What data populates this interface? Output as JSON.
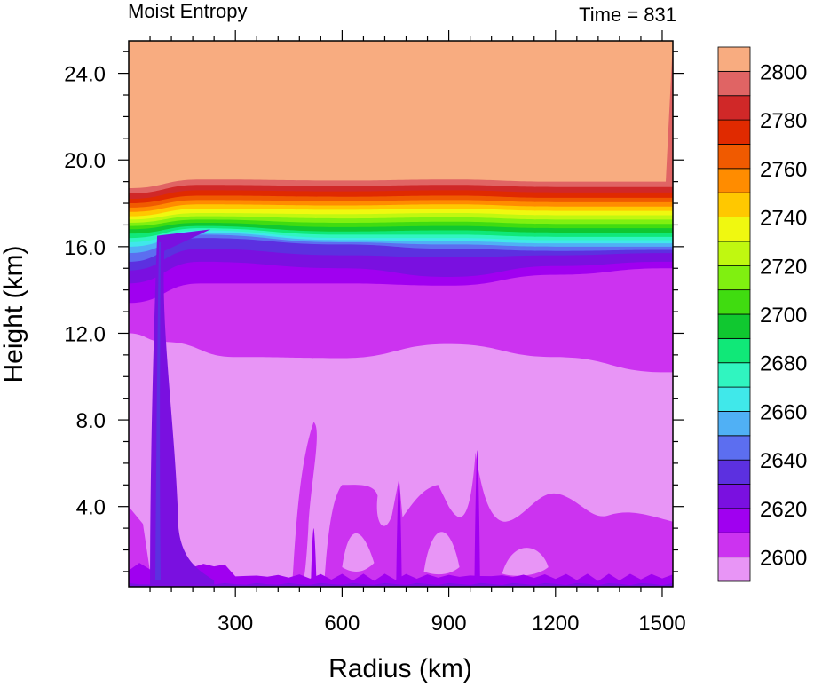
{
  "chart_data": {
    "type": "heatmap",
    "title_left": "Moist Entropy",
    "title_right": "Time = 831",
    "xlabel": "Radius (km)",
    "ylabel": "Height (km)",
    "xlim": [
      0,
      1530
    ],
    "ylim": [
      0.3,
      25.5
    ],
    "xticks": [
      300,
      600,
      900,
      1200,
      1500
    ],
    "xtick_labels": [
      "300",
      "600",
      "900",
      "1200",
      "1500"
    ],
    "yticks": [
      4,
      8,
      12,
      16,
      20,
      24
    ],
    "ytick_labels": [
      "4.0",
      "8.0",
      "12.0",
      "16.0",
      "20.0",
      "24.0"
    ],
    "colorbar": {
      "levels": [
        2600,
        2610,
        2620,
        2630,
        2640,
        2650,
        2660,
        2670,
        2680,
        2690,
        2700,
        2710,
        2720,
        2730,
        2740,
        2750,
        2760,
        2770,
        2780,
        2790,
        2800
      ],
      "labels": [
        "2600",
        "2620",
        "2640",
        "2660",
        "2680",
        "2700",
        "2720",
        "2740",
        "2760",
        "2780",
        "2800"
      ],
      "colors": [
        "#e895f6",
        "#cc33f0",
        "#a000f0",
        "#7a10e0",
        "#5c30e0",
        "#5c6ef0",
        "#50b0f5",
        "#40e8ea",
        "#30f5c0",
        "#10e878",
        "#10c830",
        "#40dc10",
        "#80f010",
        "#c0f810",
        "#f0f810",
        "#ffc800",
        "#ff8c00",
        "#f05a00",
        "#e02a00",
        "#d02828",
        "#e06464",
        "#f8ac80"
      ]
    },
    "bands": [
      {
        "level": 2800,
        "color": "#e06464",
        "boundary_height_km": [
          [
            0,
            18.45
          ],
          [
            200,
            18.85
          ],
          [
            600,
            18.8
          ],
          [
            900,
            18.85
          ],
          [
            1200,
            18.75
          ],
          [
            1510,
            18.75
          ]
        ]
      },
      {
        "level": 2790,
        "color": "#d02828",
        "boundary_height_km": [
          [
            0,
            18.2
          ],
          [
            200,
            18.6
          ],
          [
            600,
            18.55
          ],
          [
            900,
            18.6
          ],
          [
            1200,
            18.5
          ],
          [
            1510,
            18.5
          ]
        ]
      },
      {
        "level": 2780,
        "color": "#e02a00",
        "boundary_height_km": [
          [
            0,
            18.0
          ],
          [
            200,
            18.35
          ],
          [
            600,
            18.3
          ],
          [
            900,
            18.35
          ],
          [
            1200,
            18.25
          ],
          [
            1510,
            18.25
          ]
        ]
      },
      {
        "level": 2770,
        "color": "#f05a00",
        "boundary_height_km": [
          [
            0,
            17.8
          ],
          [
            200,
            18.15
          ],
          [
            600,
            18.1
          ],
          [
            900,
            18.15
          ],
          [
            1200,
            18.05
          ],
          [
            1510,
            18.05
          ]
        ]
      },
      {
        "level": 2760,
        "color": "#ff8c00",
        "boundary_height_km": [
          [
            0,
            17.6
          ],
          [
            200,
            17.95
          ],
          [
            600,
            17.9
          ],
          [
            900,
            17.95
          ],
          [
            1200,
            17.85
          ],
          [
            1510,
            17.85
          ]
        ]
      },
      {
        "level": 2750,
        "color": "#ffc800",
        "boundary_height_km": [
          [
            0,
            17.4
          ],
          [
            200,
            17.75
          ],
          [
            600,
            17.7
          ],
          [
            900,
            17.75
          ],
          [
            1200,
            17.65
          ],
          [
            1510,
            17.65
          ]
        ]
      },
      {
        "level": 2740,
        "color": "#f0f810",
        "boundary_height_km": [
          [
            0,
            17.25
          ],
          [
            200,
            17.55
          ],
          [
            600,
            17.5
          ],
          [
            900,
            17.55
          ],
          [
            1200,
            17.45
          ],
          [
            1510,
            17.45
          ]
        ]
      },
      {
        "level": 2730,
        "color": "#c0f810",
        "boundary_height_km": [
          [
            0,
            17.1
          ],
          [
            200,
            17.4
          ],
          [
            600,
            17.3
          ],
          [
            900,
            17.35
          ],
          [
            1200,
            17.25
          ],
          [
            1510,
            17.25
          ]
        ]
      },
      {
        "level": 2720,
        "color": "#80f010",
        "boundary_height_km": [
          [
            0,
            16.95
          ],
          [
            200,
            17.25
          ],
          [
            600,
            17.1
          ],
          [
            900,
            17.15
          ],
          [
            1200,
            17.05
          ],
          [
            1510,
            17.05
          ]
        ]
      },
      {
        "level": 2710,
        "color": "#40dc10",
        "boundary_height_km": [
          [
            0,
            16.8
          ],
          [
            200,
            17.1
          ],
          [
            600,
            16.9
          ],
          [
            900,
            16.95
          ],
          [
            1200,
            16.85
          ],
          [
            1510,
            16.85
          ]
        ]
      },
      {
        "level": 2700,
        "color": "#10c830",
        "boundary_height_km": [
          [
            0,
            16.6
          ],
          [
            200,
            16.95
          ],
          [
            600,
            16.7
          ],
          [
            900,
            16.75
          ],
          [
            1200,
            16.65
          ],
          [
            1510,
            16.65
          ]
        ]
      },
      {
        "level": 2690,
        "color": "#10e878",
        "boundary_height_km": [
          [
            0,
            16.4
          ],
          [
            200,
            16.85
          ],
          [
            600,
            16.55
          ],
          [
            900,
            16.55
          ],
          [
            1200,
            16.45
          ],
          [
            1510,
            16.45
          ]
        ]
      },
      {
        "level": 2680,
        "color": "#30f5c0",
        "boundary_height_km": [
          [
            0,
            16.2
          ],
          [
            200,
            16.75
          ],
          [
            600,
            16.4
          ],
          [
            900,
            16.4
          ],
          [
            1200,
            16.3
          ],
          [
            1510,
            16.3
          ]
        ]
      },
      {
        "level": 2670,
        "color": "#40e8ea",
        "boundary_height_km": [
          [
            0,
            16.0
          ],
          [
            200,
            16.65
          ],
          [
            600,
            16.3
          ],
          [
            900,
            16.25
          ],
          [
            1200,
            16.15
          ],
          [
            1510,
            16.15
          ]
        ]
      },
      {
        "level": 2660,
        "color": "#50b0f5",
        "boundary_height_km": [
          [
            0,
            15.7
          ],
          [
            200,
            16.55
          ],
          [
            600,
            16.2
          ],
          [
            900,
            16.1
          ],
          [
            1200,
            16.0
          ],
          [
            1510,
            16.0
          ]
        ]
      },
      {
        "level": 2650,
        "color": "#5c6ef0",
        "boundary_height_km": [
          [
            0,
            15.3
          ],
          [
            200,
            16.4
          ],
          [
            600,
            16.1
          ],
          [
            900,
            15.9
          ],
          [
            1200,
            15.8
          ],
          [
            1510,
            15.85
          ]
        ]
      },
      {
        "level": 2640,
        "color": "#5c30e0",
        "boundary_height_km": [
          [
            0,
            14.9
          ],
          [
            200,
            15.9
          ],
          [
            600,
            15.6
          ],
          [
            900,
            15.5
          ],
          [
            1200,
            15.6
          ],
          [
            1510,
            15.7
          ]
        ]
      },
      {
        "level": 2630,
        "color": "#7a10e0",
        "boundary_height_km": [
          [
            0,
            14.3
          ],
          [
            200,
            15.3
          ],
          [
            600,
            15.0
          ],
          [
            900,
            14.6
          ],
          [
            1200,
            15.1
          ],
          [
            1510,
            15.3
          ]
        ]
      },
      {
        "level": 2620,
        "color": "#a000f0",
        "boundary_height_km": [
          [
            0,
            13.4
          ],
          [
            200,
            14.3
          ],
          [
            600,
            14.3
          ],
          [
            900,
            14.2
          ],
          [
            1200,
            14.7
          ],
          [
            1510,
            15.0
          ]
        ]
      },
      {
        "level": 2610,
        "color": "#cc33f0",
        "boundary_height_km": [
          [
            0,
            12.0
          ],
          [
            100,
            11.6
          ],
          [
            300,
            10.9
          ],
          [
            600,
            10.85
          ],
          [
            900,
            11.5
          ],
          [
            1200,
            10.9
          ],
          [
            1510,
            10.2
          ]
        ]
      }
    ],
    "background_band": {
      "level": "<2600",
      "color": "#e895f6"
    },
    "top_band": {
      "level": ">2800",
      "color": "#f8ac80"
    },
    "eyewall_column_radius_km": [
      60,
      120
    ],
    "lower_plumes_radius_km": [
      520,
      760,
      980
    ]
  }
}
